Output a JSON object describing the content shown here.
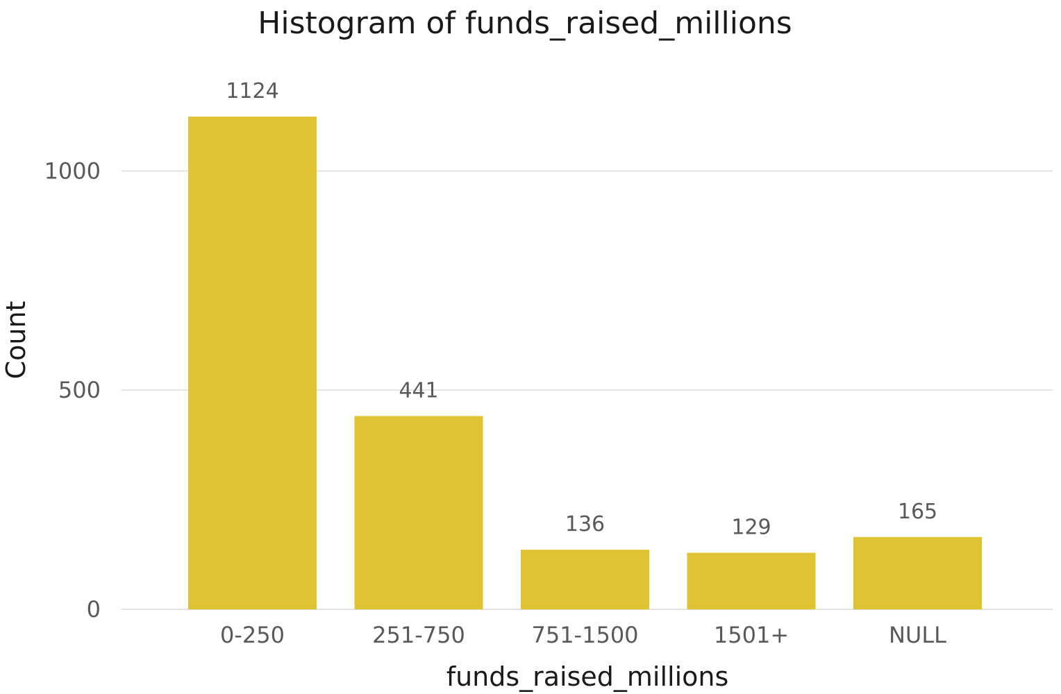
{
  "chart_data": {
    "type": "bar",
    "title": "Histogram of funds_raised_millions",
    "xlabel": "funds_raised_millions",
    "ylabel": "Count",
    "categories": [
      "0-250",
      "251-750",
      "751-1500",
      "1501+",
      "NULL"
    ],
    "values": [
      1124,
      441,
      136,
      129,
      165
    ],
    "data_labels": [
      "1124",
      "441",
      "136",
      "129",
      "165"
    ],
    "ylim": [
      0,
      1124
    ],
    "yticks": [
      0,
      500,
      1000
    ],
    "ytick_labels": [
      "0",
      "500",
      "1000"
    ],
    "grid": true,
    "legend": "none",
    "colors": {
      "bar": "#e0c332",
      "grid": "#e3e3e3",
      "tick_text": "#595959",
      "title_text": "#1a1a1a"
    }
  }
}
